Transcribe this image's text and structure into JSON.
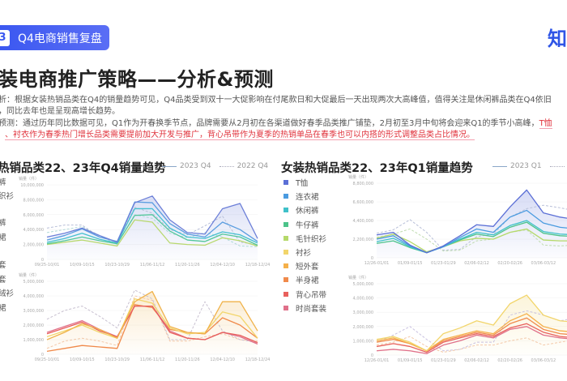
{
  "header": {
    "section_number": "3",
    "section_title": "Q4电商销售复盘",
    "logo_text": "知"
  },
  "title": "装电商推广策略——分析&预测",
  "paragraphs": {
    "line1": "析：根据女装热销品类在Q4的销量趋势可见，Q4品类受到双十一大促影响在付尾款日和大促最后一天出现两次大高峰值，值得关注是休闲裤品类在Q4依旧",
    "line2": "，同比去年也是呈现高增长趋势。",
    "line3": "预测：通过历年同比数据可见，Q1作为开春换季节点，品牌需要从2月初在各渠道做好春季品类推广铺垫，2月初至3月中旬将会迎来Q1的季节小高峰，",
    "line3_red": "T恤",
    "line4_red": "、衬衣作为春季热门增长品类需要提前加大开发与推广，背心吊带作为夏季的热销单品在春季也可以内搭的形式调整品类占比情况。"
  },
  "left_panel": {
    "title": "热销品类22、23年Q4销量趋势",
    "legend_solid": "2023 Q4",
    "legend_dashed": "2022 Q4",
    "legend_fragments": [
      "裤",
      "织衫",
      "裤",
      "裙",
      "套",
      "套",
      "绒衫",
      "裙"
    ]
  },
  "right_panel": {
    "title": "女装热销品类22、23年Q1销量趋势",
    "legend_solid": "2023 Q1",
    "legend_dashed": "20",
    "legend_items": [
      {
        "label": "T恤",
        "color": "#5b6fd6"
      },
      {
        "label": "连衣裙",
        "color": "#4a9be0"
      },
      {
        "label": "休闲裤",
        "color": "#3fc1c9"
      },
      {
        "label": "牛仔裤",
        "color": "#4cc38a"
      },
      {
        "label": "毛针织衫",
        "color": "#b5d96a"
      },
      {
        "label": "衬衫",
        "color": "#f2d56b"
      },
      {
        "label": "短外套",
        "color": "#f5b04a"
      },
      {
        "label": "半身裙",
        "color": "#f08a4b"
      },
      {
        "label": "背心吊带",
        "color": "#e8605c"
      },
      {
        "label": "时尚套装",
        "color": "#e0708a"
      }
    ]
  },
  "chart_data": [
    {
      "type": "line",
      "ylabel": "销量（件）",
      "ylim": [
        0,
        10000000
      ],
      "yticks": [
        "0",
        "2,000,000",
        "4,000,000",
        "6,000,000",
        "8,000,000",
        "10,000,000"
      ],
      "xticks": [
        "09/25-10/01",
        "10/09-10/15",
        "10/23-10/29",
        "11/06-11/12",
        "11/20-11/26",
        "12/04-12/10",
        "12/18-12/24"
      ],
      "series": [
        {
          "year": "2023 Q4",
          "color": "#6c7fd8",
          "values": [
            3.0,
            3.5,
            4.2,
            3.2,
            2.3,
            7.6,
            8.5,
            5.3,
            3.6,
            3.4,
            6.8,
            7.5,
            2.8
          ]
        },
        {
          "year": "2023 Q4",
          "color": "#5a9de0",
          "values": [
            2.6,
            3.2,
            4.1,
            3.0,
            2.4,
            7.7,
            7.6,
            4.8,
            3.4,
            3.0,
            5.0,
            4.0,
            2.4
          ]
        },
        {
          "year": "2023 Q4",
          "color": "#45c0d0",
          "values": [
            2.3,
            2.8,
            3.5,
            2.7,
            2.2,
            6.8,
            6.8,
            4.2,
            3.0,
            2.8,
            3.7,
            3.3,
            2.2
          ]
        },
        {
          "year": "2023 Q4",
          "color": "#52c79a",
          "values": [
            2.1,
            2.5,
            3.0,
            2.5,
            2.1,
            5.9,
            6.0,
            3.8,
            2.6,
            2.4,
            3.4,
            3.0,
            1.9
          ]
        },
        {
          "year": "2023 Q4",
          "color": "#b8d86e",
          "values": [
            2.0,
            2.3,
            2.6,
            2.2,
            1.8,
            5.3,
            5.0,
            2.2,
            2.0,
            1.9,
            2.9,
            2.5,
            1.8
          ]
        },
        {
          "year": "2022 Q4",
          "color": "#b8bfd8",
          "dashed": true,
          "values": [
            4.2,
            4.6,
            4.6,
            3.0,
            2.3,
            7.0,
            6.2,
            4.0,
            3.3,
            4.5,
            5.8,
            2.3,
            2.0
          ]
        },
        {
          "year": "2022 Q4",
          "color": "#b0d8d8",
          "dashed": true,
          "values": [
            3.6,
            4.0,
            4.4,
            3.2,
            2.0,
            6.0,
            5.5,
            3.5,
            2.9,
            3.6,
            3.0,
            1.8,
            1.7
          ]
        }
      ]
    },
    {
      "type": "line",
      "ylabel": "销量（件）",
      "ylim": [
        0,
        5000000
      ],
      "yticks": [
        "0",
        "1,000,000",
        "2,000,000",
        "3,000,000",
        "4,000,000",
        "5,000,000"
      ],
      "xticks": [
        "09/25-10/01",
        "10/09-10/15",
        "10/23-10/29",
        "11/06-11/12",
        "11/20-11/26",
        "12/04-12/10",
        "12/18-12/24"
      ],
      "series": [
        {
          "year": "2023 Q4",
          "color": "#f0b24a",
          "values": [
            1.0,
            1.5,
            2.1,
            1.7,
            1.1,
            3.6,
            4.3,
            1.9,
            1.5,
            1.4,
            3.6,
            3.6,
            1.6
          ]
        },
        {
          "year": "2023 Q4",
          "color": "#e8605c",
          "values": [
            1.4,
            1.8,
            2.2,
            1.6,
            1.2,
            3.3,
            3.3,
            1.5,
            1.1,
            1.0,
            1.5,
            1.3,
            0.8
          ]
        },
        {
          "year": "2023 Q4",
          "color": "#e0708a",
          "values": [
            1.5,
            1.9,
            2.3,
            1.7,
            1.2,
            3.3,
            3.3,
            1.6,
            1.1,
            1.0,
            1.5,
            1.2,
            0.7
          ]
        },
        {
          "year": "2023 Q4",
          "color": "#f2d56b",
          "values": [
            1.2,
            1.6,
            2.0,
            1.5,
            1.1,
            3.8,
            3.5,
            1.8,
            1.4,
            1.5,
            2.9,
            2.6,
            1.1
          ]
        },
        {
          "year": "2023 Q4",
          "color": "#f08a4b",
          "values": [
            0.2,
            0.4,
            0.6,
            0.5,
            0.4,
            3.4,
            3.2,
            1.7,
            1.5,
            1.4,
            2.5,
            2.0,
            1.1
          ]
        },
        {
          "year": "2022 Q4",
          "color": "#c8c0d0",
          "dashed": true,
          "values": [
            2.4,
            3.0,
            3.3,
            2.6,
            1.8,
            4.4,
            3.8,
            1.0,
            1.0,
            3.6,
            1.6,
            1.0,
            0.8
          ]
        },
        {
          "year": "2022 Q4",
          "color": "#f3c8a8",
          "dashed": true,
          "values": [
            0.4,
            0.9,
            1.1,
            0.9,
            0.6,
            4.0,
            3.7,
            0.9,
            0.9,
            1.2,
            1.4,
            1.0,
            0.9
          ]
        }
      ]
    },
    {
      "type": "line",
      "ylabel": "销量（件）",
      "ylim": [
        0,
        8800000
      ],
      "yticks": [
        "0",
        "2,200,000",
        "4,400,000",
        "6,600,000",
        "8,800,000"
      ],
      "xticks": [
        "12/26-01/01",
        "01/09-01/15",
        "01/23-01/29",
        "02/06-02/12",
        "02/20-02/26",
        "03/06-03/12",
        "03/"
      ],
      "series": [
        {
          "name": "T恤",
          "year": "2023 Q1",
          "color": "#5b6fd6",
          "values": [
            2.7,
            3.0,
            1.5,
            0.6,
            1.4,
            2.6,
            3.9,
            3.7,
            6.0,
            8.0,
            5.3,
            4.8,
            4.5
          ]
        },
        {
          "name": "连衣裙",
          "year": "2023 Q1",
          "color": "#4a9be0",
          "values": [
            2.2,
            2.6,
            1.4,
            0.6,
            1.3,
            2.4,
            3.4,
            3.0,
            4.8,
            5.6,
            4.1,
            3.6,
            3.4
          ]
        },
        {
          "name": "休闲裤",
          "year": "2023 Q1",
          "color": "#3fc1c9",
          "values": [
            1.9,
            2.3,
            1.3,
            0.6,
            1.3,
            2.2,
            3.0,
            2.7,
            3.8,
            4.4,
            3.1,
            2.8,
            2.7
          ]
        },
        {
          "name": "牛仔裤",
          "year": "2023 Q1",
          "color": "#4cc38a",
          "values": [
            1.7,
            2.0,
            1.2,
            0.6,
            1.3,
            2.1,
            2.8,
            2.5,
            3.6,
            4.2,
            2.9,
            2.6,
            2.5
          ]
        },
        {
          "name": "毛针织衫",
          "year": "2023 Q1",
          "color": "#b5d96a",
          "values": [
            2.3,
            2.8,
            1.9,
            0.7,
            1.3,
            2.0,
            2.3,
            2.2,
            3.0,
            3.4,
            2.1,
            2.0,
            2.0
          ]
        },
        {
          "year": "2022 Q1",
          "color": "#b8bfd8",
          "dashed": true,
          "values": [
            2.9,
            3.3,
            4.5,
            3.0,
            0.9,
            1.0,
            2.5,
            2.8,
            4.8,
            5.8,
            6.2,
            5.9,
            5.5
          ]
        },
        {
          "year": "2022 Q1",
          "color": "#c0dcb0",
          "dashed": true,
          "values": [
            2.4,
            2.8,
            3.4,
            2.2,
            0.8,
            0.9,
            2.0,
            2.2,
            3.0,
            3.3,
            1.5,
            1.4,
            1.5
          ]
        }
      ]
    },
    {
      "type": "line",
      "ylabel": "销量（件）",
      "ylim": [
        0,
        5000000
      ],
      "yticks": [
        "0",
        "1,000,000",
        "2,000,000",
        "3,000,000",
        "4,000,000",
        "5,000,000"
      ],
      "xticks": [
        "12/26-01/01",
        "01/09-01/15",
        "01/23-01/29",
        "02/06-02/12",
        "02/20-02/26",
        "03/06-03/12",
        "03/"
      ],
      "series": [
        {
          "name": "衬衫",
          "year": "2023 Q1",
          "color": "#f2d56b",
          "values": [
            1.1,
            1.3,
            0.9,
            0.3,
            1.5,
            1.9,
            2.4,
            2.1,
            3.6,
            4.2,
            2.8,
            2.4,
            2.3
          ]
        },
        {
          "name": "短外套",
          "year": "2023 Q1",
          "color": "#f5b04a",
          "values": [
            1.0,
            1.2,
            0.8,
            0.3,
            1.1,
            1.4,
            1.7,
            1.5,
            2.4,
            2.9,
            2.0,
            1.7,
            1.6
          ]
        },
        {
          "name": "半身裙",
          "year": "2023 Q1",
          "color": "#f08a4b",
          "values": [
            0.9,
            1.1,
            0.8,
            0.3,
            1.0,
            1.3,
            1.6,
            1.4,
            2.2,
            2.6,
            1.8,
            1.5,
            1.4
          ]
        },
        {
          "name": "背心吊带",
          "year": "2023 Q1",
          "color": "#e8605c",
          "values": [
            0.6,
            0.8,
            0.6,
            0.2,
            0.9,
            1.2,
            1.5,
            1.3,
            1.9,
            2.2,
            1.6,
            1.3,
            1.2
          ]
        },
        {
          "name": "时尚套装",
          "year": "2023 Q1",
          "color": "#e0708a",
          "values": [
            0.3,
            0.4,
            0.3,
            0.1,
            0.7,
            1.0,
            1.4,
            1.2,
            1.8,
            2.0,
            1.4,
            1.2,
            1.1
          ]
        },
        {
          "year": "2022 Q1",
          "color": "#c8c0e0",
          "dashed": true,
          "values": [
            0.9,
            1.4,
            2.0,
            1.1,
            0.3,
            0.4,
            0.9,
            0.9,
            2.8,
            3.1,
            2.8,
            2.4,
            2.6
          ]
        },
        {
          "year": "2022 Q1",
          "color": "#f3c8a8",
          "dashed": true,
          "values": [
            0.7,
            0.9,
            1.3,
            0.6,
            0.2,
            0.4,
            0.7,
            0.7,
            1.0,
            1.2,
            0.7,
            0.9,
            1.1
          ]
        }
      ]
    }
  ]
}
